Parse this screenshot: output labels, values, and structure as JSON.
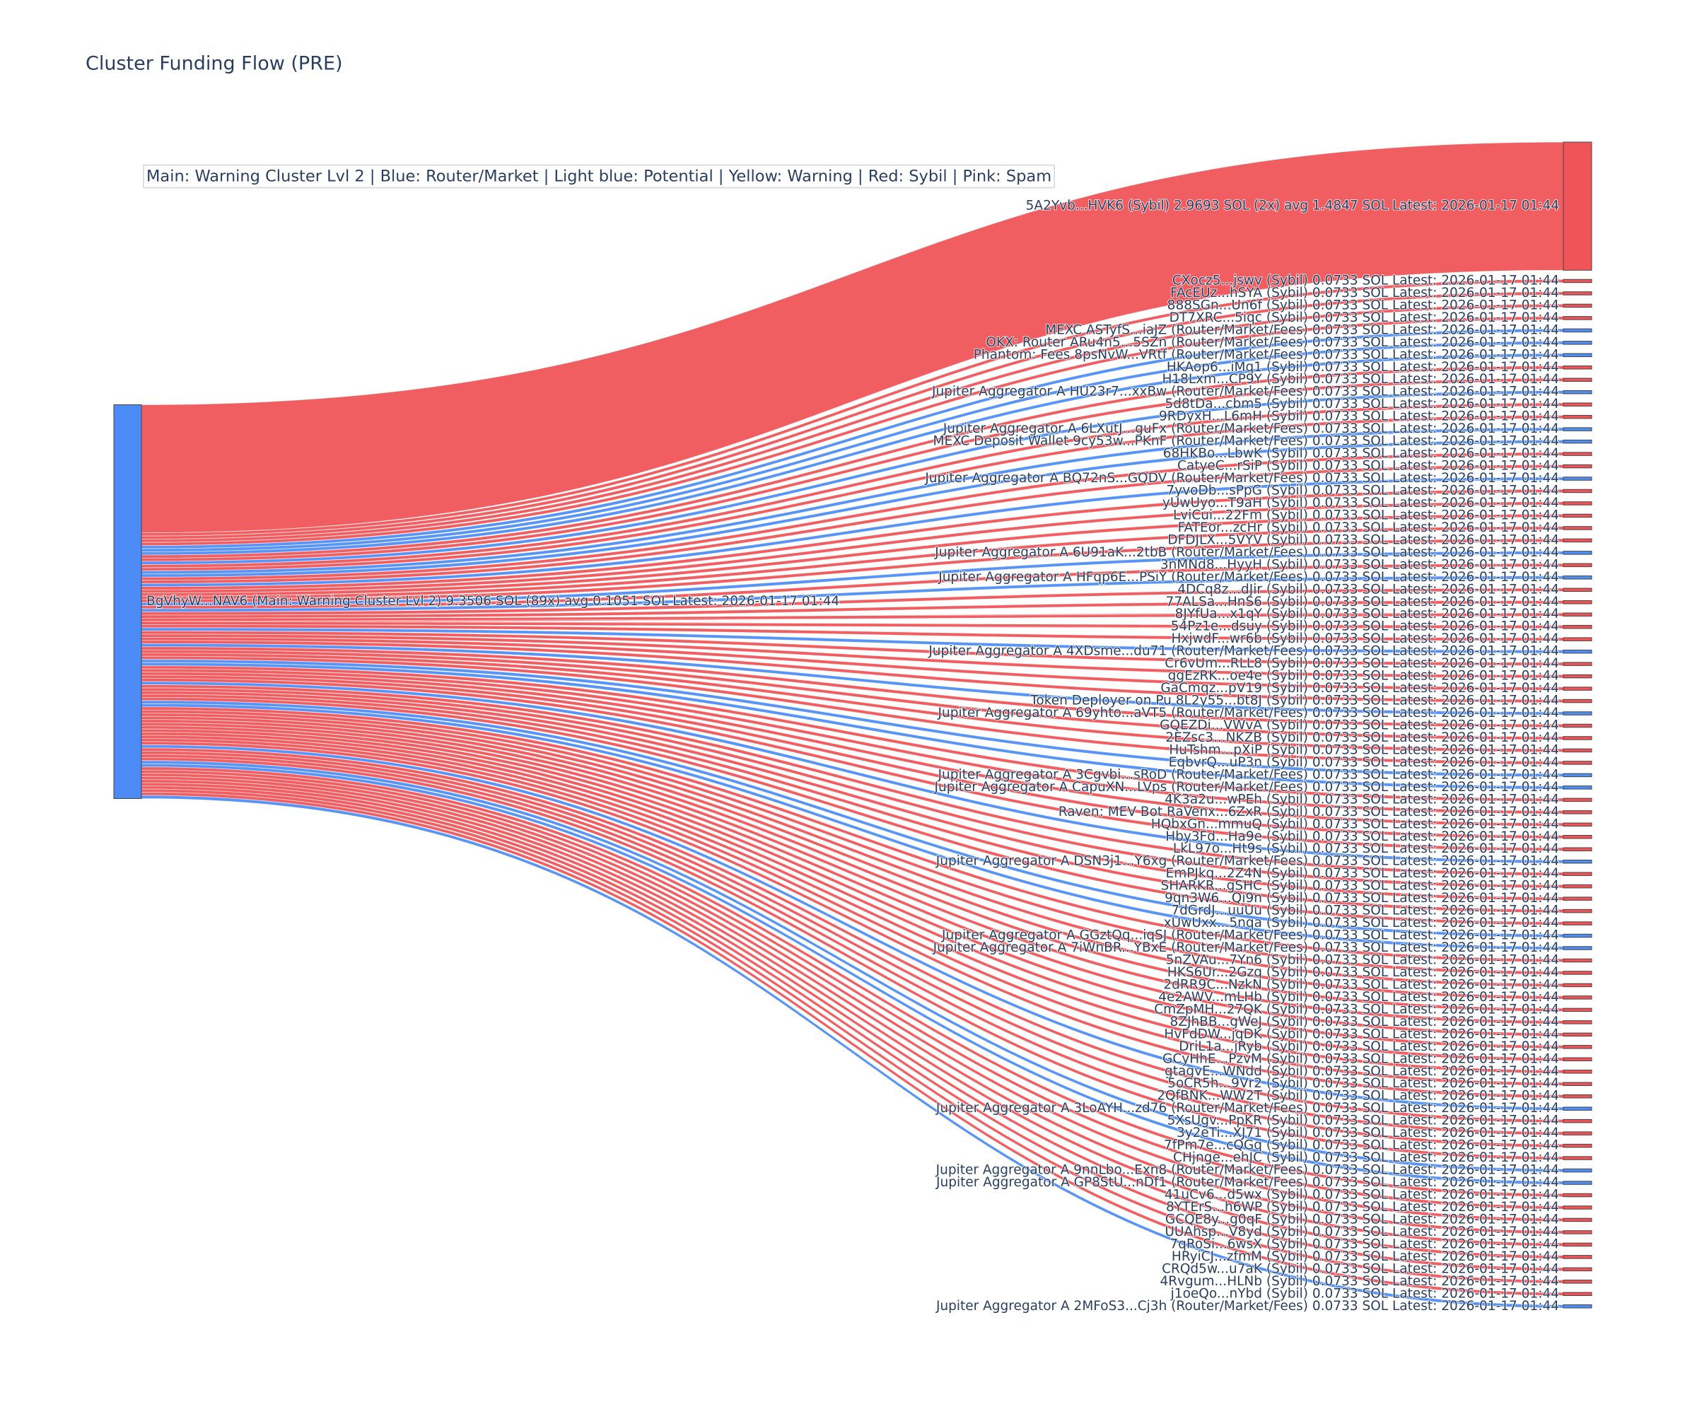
{
  "chart_data": {
    "type": "sankey",
    "title": "Cluster Funding Flow (PRE)",
    "annotation": "Main: Warning Cluster Lvl 2  |  Blue: Router/Market | Light blue: Potential | Yellow: Warning | Red: Sybil | Pink: Spam",
    "nodes": {
      "label": [
        "BgVhyW...NAV6 (Main: Warning Cluster Lvl 2) 9.3506 SOL (89x) avg 0.1051 SOL Latest: 2026-01-17 01:44",
        "5A2Yvb...HVK6 (Sybil) 2.9693 SOL (2x) avg 1.4847 SOL Latest: 2026-01-17 01:44",
        "CXocz5...jswv (Sybil) 0.0733 SOL Latest: 2026-01-17 01:44",
        "FAcEUz...hSYA (Sybil) 0.0733 SOL Latest: 2026-01-17 01:44",
        "888SGn...Un6f (Sybil) 0.0733 SOL Latest: 2026-01-17 01:44",
        "DT7XRC...5iqc (Sybil) 0.0733 SOL Latest: 2026-01-17 01:44",
        "MEXC ASTyfS...iaJZ (Router/Market/Fees) 0.0733 SOL Latest: 2026-01-17 01:44",
        "OKX: Router ARu4n5...5SZn (Router/Market/Fees) 0.0733 SOL Latest: 2026-01-17 01:44",
        "Phantom: Fees 8psNvW...VRtf (Router/Market/Fees) 0.0733 SOL Latest: 2026-01-17 01:44",
        "HKAop6...iMq1 (Sybil) 0.0733 SOL Latest: 2026-01-17 01:44",
        "H18Lxm...CP9Y (Sybil) 0.0733 SOL Latest: 2026-01-17 01:44",
        "Jupiter Aggregator A HU23r7...xxBw (Router/Market/Fees) 0.0733 SOL Latest: 2026-01-17 01:44",
        "5d8tDa...cbm5 (Sybil) 0.0733 SOL Latest: 2026-01-17 01:44",
        "9RDyxH...L6mH (Sybil) 0.0733 SOL Latest: 2026-01-17 01:44",
        "Jupiter Aggregator A 6LXutJ...guFx (Router/Market/Fees) 0.0733 SOL Latest: 2026-01-17 01:44",
        "MEXC Deposit Wallet 9cy53w...PKnF (Router/Market/Fees) 0.0733 SOL Latest: 2026-01-17 01:44",
        "68HKBo...LbwK (Sybil) 0.0733 SOL Latest: 2026-01-17 01:44",
        "CatyeC...rSiP (Sybil) 0.0733 SOL Latest: 2026-01-17 01:44",
        "Jupiter Aggregator A BQ72nS...GQDV (Router/Market/Fees) 0.0733 SOL Latest: 2026-01-17 01:44",
        "7yvoDb...sPpG (Sybil) 0.0733 SOL Latest: 2026-01-17 01:44",
        "yUwUyo...T9aH (Sybil) 0.0733 SOL Latest: 2026-01-17 01:44",
        "LviCui...22Fm (Sybil) 0.0733 SOL Latest: 2026-01-17 01:44",
        "FATEor...zcHr (Sybil) 0.0733 SOL Latest: 2026-01-17 01:44",
        "DFDJLX...5VYV (Sybil) 0.0733 SOL Latest: 2026-01-17 01:44",
        "Jupiter Aggregator A 6U91aK...2tbB (Router/Market/Fees) 0.0733 SOL Latest: 2026-01-17 01:44",
        "3nMNd8...HyyH (Sybil) 0.0733 SOL Latest: 2026-01-17 01:44",
        "Jupiter Aggregator A HFqp6E...PSiY (Router/Market/Fees) 0.0733 SOL Latest: 2026-01-17 01:44",
        "4DCq8z...dJir (Sybil) 0.0733 SOL Latest: 2026-01-17 01:44",
        "77ALSa...HnS6 (Sybil) 0.0733 SOL Latest: 2026-01-17 01:44",
        "8JYfUa...x1qY (Sybil) 0.0733 SOL Latest: 2026-01-17 01:44",
        "54Pz1e...dsuy (Sybil) 0.0733 SOL Latest: 2026-01-17 01:44",
        "HxjwdF...wr6b (Sybil) 0.0733 SOL Latest: 2026-01-17 01:44",
        "Jupiter Aggregator A 4XDsme...du71 (Router/Market/Fees) 0.0733 SOL Latest: 2026-01-17 01:44",
        "Cr6vUm...RLL8 (Sybil) 0.0733 SOL Latest: 2026-01-17 01:44",
        "ggEzRK...oe4e (Sybil) 0.0733 SOL Latest: 2026-01-17 01:44",
        "GaCmqz...pV19 (Sybil) 0.0733 SOL Latest: 2026-01-17 01:44",
        "Token Deployer on Pu 8L2y55...bt8J (Sybil) 0.0733 SOL Latest: 2026-01-17 01:44",
        "Jupiter Aggregator A 69yhto...aVT5 (Router/Market/Fees) 0.0733 SOL Latest: 2026-01-17 01:44",
        "GQEZDi...VWvA (Sybil) 0.0733 SOL Latest: 2026-01-17 01:44",
        "2EZsc3...NKZB (Sybil) 0.0733 SOL Latest: 2026-01-17 01:44",
        "HuTshm...pXiP (Sybil) 0.0733 SOL Latest: 2026-01-17 01:44",
        "EqbvrQ...uP3n (Sybil) 0.0733 SOL Latest: 2026-01-17 01:44",
        "Jupiter Aggregator A 3Cgvbi...sRoD (Router/Market/Fees) 0.0733 SOL Latest: 2026-01-17 01:44",
        "Jupiter Aggregator A CapuXN...LVps (Router/Market/Fees) 0.0733 SOL Latest: 2026-01-17 01:44",
        "4K3a2u...wPEh (Sybil) 0.0733 SOL Latest: 2026-01-17 01:44",
        "Raven: MEV Bot RaVenx...6ZxR (Sybil) 0.0733 SOL Latest: 2026-01-17 01:44",
        "HQbxGn...mmuQ (Sybil) 0.0733 SOL Latest: 2026-01-17 01:44",
        "Hby3Fd...Ha9e (Sybil) 0.0733 SOL Latest: 2026-01-17 01:44",
        "LkL97o...Ht9s (Sybil) 0.0733 SOL Latest: 2026-01-17 01:44",
        "Jupiter Aggregator A DSN3j1...Y6xg (Router/Market/Fees) 0.0733 SOL Latest: 2026-01-17 01:44",
        "EmPJkq...2Z4N (Sybil) 0.0733 SOL Latest: 2026-01-17 01:44",
        "SHARKR...gSHC (Sybil) 0.0733 SOL Latest: 2026-01-17 01:44",
        "9qn3W6...Qi9n (Sybil) 0.0733 SOL Latest: 2026-01-17 01:44",
        "7dGrdJ...uuUu (Sybil) 0.0733 SOL Latest: 2026-01-17 01:44",
        "xUwUxx...5nqa (Sybil) 0.0733 SOL Latest: 2026-01-17 01:44",
        "Jupiter Aggregator A GGztQq...iqSJ (Router/Market/Fees) 0.0733 SOL Latest: 2026-01-17 01:44",
        "Jupiter Aggregator A 7iWnBR...YBxE (Router/Market/Fees) 0.0733 SOL Latest: 2026-01-17 01:44",
        "5nZVAu...7Yn6 (Sybil) 0.0733 SOL Latest: 2026-01-17 01:44",
        "HKS6Ur...2Gzq (Sybil) 0.0733 SOL Latest: 2026-01-17 01:44",
        "2dRR9C...NzkN (Sybil) 0.0733 SOL Latest: 2026-01-17 01:44",
        "4e2AWV...mLHb (Sybil) 0.0733 SOL Latest: 2026-01-17 01:44",
        "CmZpMH...27QK (Sybil) 0.0733 SOL Latest: 2026-01-17 01:44",
        "8ZJhBB...gWeJ (Sybil) 0.0733 SOL Latest: 2026-01-17 01:44",
        "HvFdDW...jqDK (Sybil) 0.0733 SOL Latest: 2026-01-17 01:44",
        "DriL1a...jRyb (Sybil) 0.0733 SOL Latest: 2026-01-17 01:44",
        "GCyHhE...PzvM (Sybil) 0.0733 SOL Latest: 2026-01-17 01:44",
        "gtagvE...WNdd (Sybil) 0.0733 SOL Latest: 2026-01-17 01:44",
        "5oCR5h...9Vr2 (Sybil) 0.0733 SOL Latest: 2026-01-17 01:44",
        "2QfBNK...WW2T (Sybil) 0.0733 SOL Latest: 2026-01-17 01:44",
        "Jupiter Aggregator A 3LoAYH...zd76 (Router/Market/Fees) 0.0733 SOL Latest: 2026-01-17 01:44",
        "5XsUgv...PpKR (Sybil) 0.0733 SOL Latest: 2026-01-17 01:44",
        "3y2eTi...XJ71 (Sybil) 0.0733 SOL Latest: 2026-01-17 01:44",
        "7fPm7e...cQGq (Sybil) 0.0733 SOL Latest: 2026-01-17 01:44",
        "CHjnge...ehJC (Sybil) 0.0733 SOL Latest: 2026-01-17 01:44",
        "Jupiter Aggregator A 9nnLbo...Exn8 (Router/Market/Fees) 0.0733 SOL Latest: 2026-01-17 01:44",
        "Jupiter Aggregator A GP8StU...nDf1 (Router/Market/Fees) 0.0733 SOL Latest: 2026-01-17 01:44",
        "41uCv6...d5wx (Sybil) 0.0733 SOL Latest: 2026-01-17 01:44",
        "8YTErS...h6WP (Sybil) 0.0733 SOL Latest: 2026-01-17 01:44",
        "GCQE8y...g0qF (Sybil) 0.0733 SOL Latest: 2026-01-17 01:44",
        "UUAhsp...V8yd (Sybil) 0.0733 SOL Latest: 2026-01-17 01:44",
        "7qRoSi...6wsX (Sybil) 0.0733 SOL Latest: 2026-01-17 01:44",
        "HRyiCJ...zfmM (Sybil) 0.0733 SOL Latest: 2026-01-17 01:44",
        "CRQd5w...u7aK (Sybil) 0.0733 SOL Latest: 2026-01-17 01:44",
        "4Rvgum...HLNb (Sybil) 0.0733 SOL Latest: 2026-01-17 01:44",
        "j1oeQo...nYbd (Sybil) 0.0733 SOL Latest: 2026-01-17 01:44",
        "Jupiter Aggregator A 2MFoS3...Cj3h (Router/Market/Fees) 0.0733 SOL Latest: 2026-01-17 01:44"
      ],
      "color": [
        "#4c8bf5",
        "#ef5558",
        "#ef5558",
        "#ef5558",
        "#ef5558",
        "#ef5558",
        "#4f8ef5",
        "#4f8ef5",
        "#4f8ef5",
        "#ef5558",
        "#ef5558",
        "#4f8ef5",
        "#ef5558",
        "#ef5558",
        "#4f8ef5",
        "#4f8ef5",
        "#ef5558",
        "#ef5558",
        "#4f8ef5",
        "#ef5558",
        "#ef5558",
        "#ef5558",
        "#ef5558",
        "#ef5558",
        "#4f8ef5",
        "#ef5558",
        "#4f8ef5",
        "#ef5558",
        "#ef5558",
        "#ef5558",
        "#ef5558",
        "#ef5558",
        "#4f8ef5",
        "#ef5558",
        "#ef5558",
        "#ef5558",
        "#ef5558",
        "#4f8ef5",
        "#ef5558",
        "#ef5558",
        "#ef5558",
        "#ef5558",
        "#4f8ef5",
        "#4f8ef5",
        "#ef5558",
        "#ef5558",
        "#ef5558",
        "#ef5558",
        "#ef5558",
        "#4f8ef5",
        "#ef5558",
        "#ef5558",
        "#ef5558",
        "#ef5558",
        "#ef5558",
        "#4f8ef5",
        "#4f8ef5",
        "#ef5558",
        "#ef5558",
        "#ef5558",
        "#ef5558",
        "#ef5558",
        "#ef5558",
        "#ef5558",
        "#ef5558",
        "#ef5558",
        "#ef5558",
        "#ef5558",
        "#ef5558",
        "#4f8ef5",
        "#ef5558",
        "#ef5558",
        "#ef5558",
        "#ef5558",
        "#4f8ef5",
        "#4f8ef5",
        "#ef5558",
        "#ef5558",
        "#ef5558",
        "#ef5558",
        "#ef5558",
        "#ef5558",
        "#ef5558",
        "#ef5558",
        "#ef5558",
        "#4f8ef5"
      ]
    },
    "links": {
      "source": [
        0,
        0,
        0,
        0,
        0,
        0,
        0,
        0,
        0,
        0,
        0,
        0,
        0,
        0,
        0,
        0,
        0,
        0,
        0,
        0,
        0,
        0,
        0,
        0,
        0,
        0,
        0,
        0,
        0,
        0,
        0,
        0,
        0,
        0,
        0,
        0,
        0,
        0,
        0,
        0,
        0,
        0,
        0,
        0,
        0,
        0,
        0,
        0,
        0,
        0,
        0,
        0,
        0,
        0,
        0,
        0,
        0,
        0,
        0,
        0,
        0,
        0,
        0,
        0,
        0,
        0,
        0,
        0,
        0,
        0,
        0,
        0,
        0,
        0,
        0,
        0,
        0,
        0,
        0,
        0,
        0,
        0,
        0,
        0,
        0
      ],
      "target": [
        1,
        2,
        3,
        4,
        5,
        6,
        7,
        8,
        9,
        10,
        11,
        12,
        13,
        14,
        15,
        16,
        17,
        18,
        19,
        20,
        21,
        22,
        23,
        24,
        25,
        26,
        27,
        28,
        29,
        30,
        31,
        32,
        33,
        34,
        35,
        36,
        37,
        38,
        39,
        40,
        41,
        42,
        43,
        44,
        45,
        46,
        47,
        48,
        49,
        50,
        51,
        52,
        53,
        54,
        55,
        56,
        57,
        58,
        59,
        60,
        61,
        62,
        63,
        64,
        65,
        66,
        67,
        68,
        69,
        70,
        71,
        72,
        73,
        74,
        75,
        76,
        77,
        78,
        79,
        80,
        81,
        82,
        83,
        84,
        85
      ],
      "value": [
        2.9693,
        0.0733,
        0.0733,
        0.0733,
        0.0733,
        0.0733,
        0.0733,
        0.0733,
        0.0733,
        0.0733,
        0.0733,
        0.0733,
        0.0733,
        0.0733,
        0.0733,
        0.0733,
        0.0733,
        0.0733,
        0.0733,
        0.0733,
        0.0733,
        0.0733,
        0.0733,
        0.0733,
        0.0733,
        0.0733,
        0.0733,
        0.0733,
        0.0733,
        0.0733,
        0.0733,
        0.0733,
        0.0733,
        0.0733,
        0.0733,
        0.0733,
        0.0733,
        0.0733,
        0.0733,
        0.0733,
        0.0733,
        0.0733,
        0.0733,
        0.0733,
        0.0733,
        0.0733,
        0.0733,
        0.0733,
        0.0733,
        0.0733,
        0.0733,
        0.0733,
        0.0733,
        0.0733,
        0.0733,
        0.0733,
        0.0733,
        0.0733,
        0.0733,
        0.0733,
        0.0733,
        0.0733,
        0.0733,
        0.0733,
        0.0733,
        0.0733,
        0.0733,
        0.0733,
        0.0733,
        0.0733,
        0.0733,
        0.0733,
        0.0733,
        0.0733,
        0.0733,
        0.0733,
        0.0733,
        0.0733,
        0.0733,
        0.0733,
        0.0733,
        0.0733,
        0.0733,
        0.0733,
        0.0733
      ],
      "color": [
        "#ef5558",
        "#ef5558",
        "#ef5558",
        "#ef5558",
        "#ef5558",
        "#4f8ef5",
        "#4f8ef5",
        "#4f8ef5",
        "#ef5558",
        "#ef5558",
        "#4f8ef5",
        "#ef5558",
        "#ef5558",
        "#4f8ef5",
        "#4f8ef5",
        "#ef5558",
        "#ef5558",
        "#4f8ef5",
        "#ef5558",
        "#ef5558",
        "#ef5558",
        "#ef5558",
        "#ef5558",
        "#4f8ef5",
        "#ef5558",
        "#4f8ef5",
        "#ef5558",
        "#ef5558",
        "#ef5558",
        "#ef5558",
        "#ef5558",
        "#4f8ef5",
        "#ef5558",
        "#ef5558",
        "#ef5558",
        "#ef5558",
        "#4f8ef5",
        "#ef5558",
        "#ef5558",
        "#ef5558",
        "#ef5558",
        "#4f8ef5",
        "#4f8ef5",
        "#ef5558",
        "#ef5558",
        "#ef5558",
        "#ef5558",
        "#ef5558",
        "#4f8ef5",
        "#ef5558",
        "#ef5558",
        "#ef5558",
        "#ef5558",
        "#ef5558",
        "#4f8ef5",
        "#4f8ef5",
        "#ef5558",
        "#ef5558",
        "#ef5558",
        "#ef5558",
        "#ef5558",
        "#ef5558",
        "#ef5558",
        "#ef5558",
        "#ef5558",
        "#ef5558",
        "#ef5558",
        "#ef5558",
        "#4f8ef5",
        "#ef5558",
        "#ef5558",
        "#ef5558",
        "#ef5558",
        "#4f8ef5",
        "#4f8ef5",
        "#ef5558",
        "#ef5558",
        "#ef5558",
        "#ef5558",
        "#ef5558",
        "#ef5558",
        "#ef5558",
        "#ef5558",
        "#ef5558",
        "#4f8ef5"
      ]
    }
  }
}
